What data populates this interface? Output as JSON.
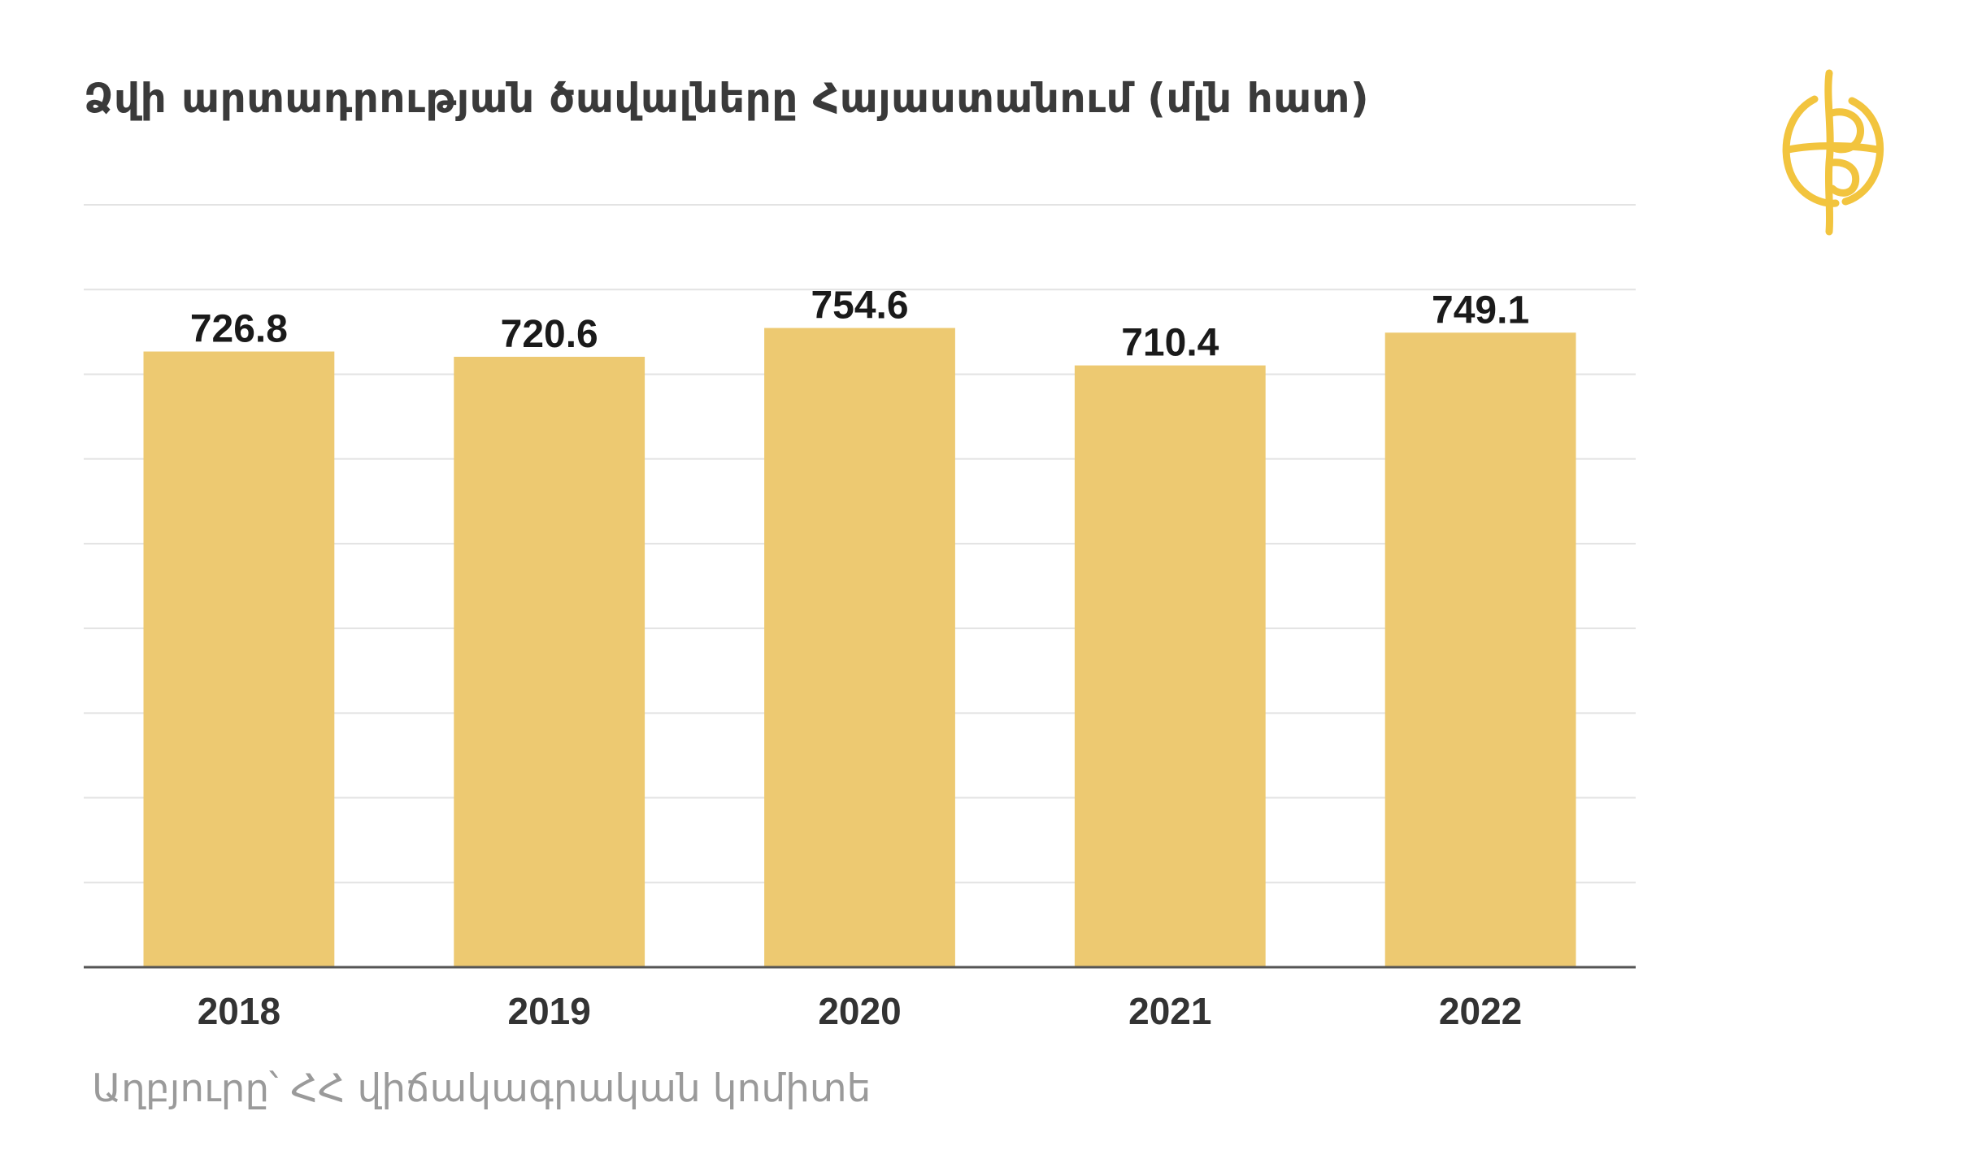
{
  "title": "Ձվի արտադրության ծավալները Հայաստանում (մլն հատ)",
  "source": "Աղբյուրը՝ ՀՀ վիճակագրական կոմիտե",
  "colors": {
    "bar": "#EDC971",
    "grid": "#e3e3e3",
    "axis": "#555555",
    "logo": "#F2C43E"
  },
  "logo": {
    "icon": "globe-emblem-icon"
  },
  "chart_data": {
    "type": "bar",
    "categories": [
      "2018",
      "2019",
      "2020",
      "2021",
      "2022"
    ],
    "values": [
      726.8,
      720.6,
      754.6,
      710.4,
      749.1
    ],
    "data_labels": [
      "726.8",
      "720.6",
      "754.6",
      "710.4",
      "749.1"
    ],
    "ylim": [
      0,
      900
    ],
    "grid": true,
    "ytick_step": 100,
    "show_y_tick_labels": false,
    "legend": "none"
  }
}
